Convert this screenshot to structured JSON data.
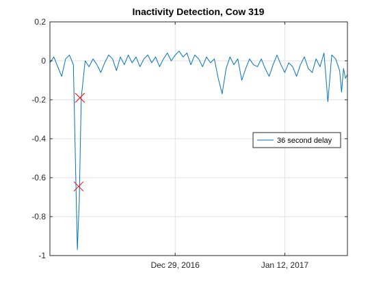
{
  "chart_data": {
    "type": "line",
    "title": "Inactivity Detection, Cow 319",
    "xlabel": "",
    "ylabel": "",
    "x_axis": {
      "type": "date",
      "start": "2016-12-13",
      "end": "2017-01-20",
      "tick_labels": [
        "Dec 29, 2016",
        "Jan 12, 2017"
      ],
      "tick_dates": [
        "2016-12-29",
        "2017-01-12"
      ]
    },
    "y_axis": {
      "ylim": [
        -1,
        0.2
      ],
      "tick_values": [
        0.2,
        0,
        -0.2,
        -0.4,
        -0.6,
        -0.8,
        -1
      ],
      "tick_labels": [
        "0.2",
        "0",
        "-0.2",
        "-0.4",
        "-0.6",
        "-0.8",
        "-1"
      ]
    },
    "grid": true,
    "legend_position": "right",
    "series": [
      {
        "name": "36 second delay",
        "color": "#0072BD",
        "points": [
          [
            "2016-12-13",
            -0.01
          ],
          [
            "2016-12-13T12:00",
            0.02
          ],
          [
            "2016-12-14",
            -0.03
          ],
          [
            "2016-12-14T12:00",
            -0.08
          ],
          [
            "2016-12-15",
            0.01
          ],
          [
            "2016-12-15T12:00",
            0.03
          ],
          [
            "2016-12-16",
            -0.02
          ],
          [
            "2016-12-16T06:00",
            -0.5
          ],
          [
            "2016-12-16T12:00",
            -0.97
          ],
          [
            "2016-12-16T18:00",
            -0.72
          ],
          [
            "2016-12-17",
            -0.19
          ],
          [
            "2016-12-17T12:00",
            0.0
          ],
          [
            "2016-12-18",
            -0.03
          ],
          [
            "2016-12-18T12:00",
            0.01
          ],
          [
            "2016-12-19",
            -0.02
          ],
          [
            "2016-12-19T12:00",
            -0.06
          ],
          [
            "2016-12-20",
            -0.01
          ],
          [
            "2016-12-20T12:00",
            0.03
          ],
          [
            "2016-12-21",
            0.01
          ],
          [
            "2016-12-21T12:00",
            -0.05
          ],
          [
            "2016-12-22",
            0.02
          ],
          [
            "2016-12-22T12:00",
            -0.02
          ],
          [
            "2016-12-23",
            0.03
          ],
          [
            "2016-12-23T12:00",
            -0.01
          ],
          [
            "2016-12-24",
            0.02
          ],
          [
            "2016-12-24T12:00",
            -0.03
          ],
          [
            "2016-12-25",
            0.01
          ],
          [
            "2016-12-25T12:00",
            0.03
          ],
          [
            "2016-12-26",
            -0.01
          ],
          [
            "2016-12-26T12:00",
            0.02
          ],
          [
            "2016-12-27",
            -0.03
          ],
          [
            "2016-12-27T12:00",
            0.01
          ],
          [
            "2016-12-28",
            0.04
          ],
          [
            "2016-12-28T12:00",
            0.0
          ],
          [
            "2016-12-29",
            0.03
          ],
          [
            "2016-12-29T12:00",
            0.05
          ],
          [
            "2016-12-30",
            0.02
          ],
          [
            "2016-12-30T12:00",
            0.04
          ],
          [
            "2016-12-31",
            -0.02
          ],
          [
            "2016-12-31T12:00",
            0.03
          ],
          [
            "2017-01-01",
            0.01
          ],
          [
            "2017-01-01T12:00",
            -0.03
          ],
          [
            "2017-01-02",
            0.02
          ],
          [
            "2017-01-02T12:00",
            -0.01
          ],
          [
            "2017-01-03",
            0.01
          ],
          [
            "2017-01-03T12:00",
            -0.09
          ],
          [
            "2017-01-04",
            -0.17
          ],
          [
            "2017-01-04T12:00",
            -0.04
          ],
          [
            "2017-01-05",
            0.02
          ],
          [
            "2017-01-05T12:00",
            -0.02
          ],
          [
            "2017-01-06",
            0.01
          ],
          [
            "2017-01-06T12:00",
            -0.1
          ],
          [
            "2017-01-07",
            -0.04
          ],
          [
            "2017-01-07T12:00",
            0.01
          ],
          [
            "2017-01-08",
            -0.02
          ],
          [
            "2017-01-08T12:00",
            -0.03
          ],
          [
            "2017-01-09",
            0.01
          ],
          [
            "2017-01-09T12:00",
            -0.04
          ],
          [
            "2017-01-10",
            -0.08
          ],
          [
            "2017-01-10T12:00",
            -0.02
          ],
          [
            "2017-01-11",
            0.03
          ],
          [
            "2017-01-11T12:00",
            -0.02
          ],
          [
            "2017-01-12",
            -0.06
          ],
          [
            "2017-01-12T12:00",
            -0.01
          ],
          [
            "2017-01-13",
            -0.03
          ],
          [
            "2017-01-13T12:00",
            -0.08
          ],
          [
            "2017-01-14",
            -0.02
          ],
          [
            "2017-01-14T12:00",
            0.02
          ],
          [
            "2017-01-15",
            -0.04
          ],
          [
            "2017-01-15T12:00",
            -0.06
          ],
          [
            "2017-01-16",
            0.01
          ],
          [
            "2017-01-16T12:00",
            -0.03
          ],
          [
            "2017-01-17",
            0.04
          ],
          [
            "2017-01-17T06:00",
            -0.08
          ],
          [
            "2017-01-17T12:00",
            -0.21
          ],
          [
            "2017-01-18",
            0.03
          ],
          [
            "2017-01-18T12:00",
            0.01
          ],
          [
            "2017-01-19",
            -0.05
          ],
          [
            "2017-01-19T06:00",
            -0.16
          ],
          [
            "2017-01-19T12:00",
            -0.04
          ],
          [
            "2017-01-19T18:00",
            -0.09
          ],
          [
            "2017-01-20",
            -0.07
          ]
        ]
      }
    ],
    "markers": [
      {
        "x": "2016-12-16T16:00",
        "y": -0.645,
        "symbol": "x",
        "color": "#FF0000"
      },
      {
        "x": "2016-12-16T20:00",
        "y": -0.19,
        "symbol": "x",
        "color": "#FF0000"
      }
    ]
  }
}
